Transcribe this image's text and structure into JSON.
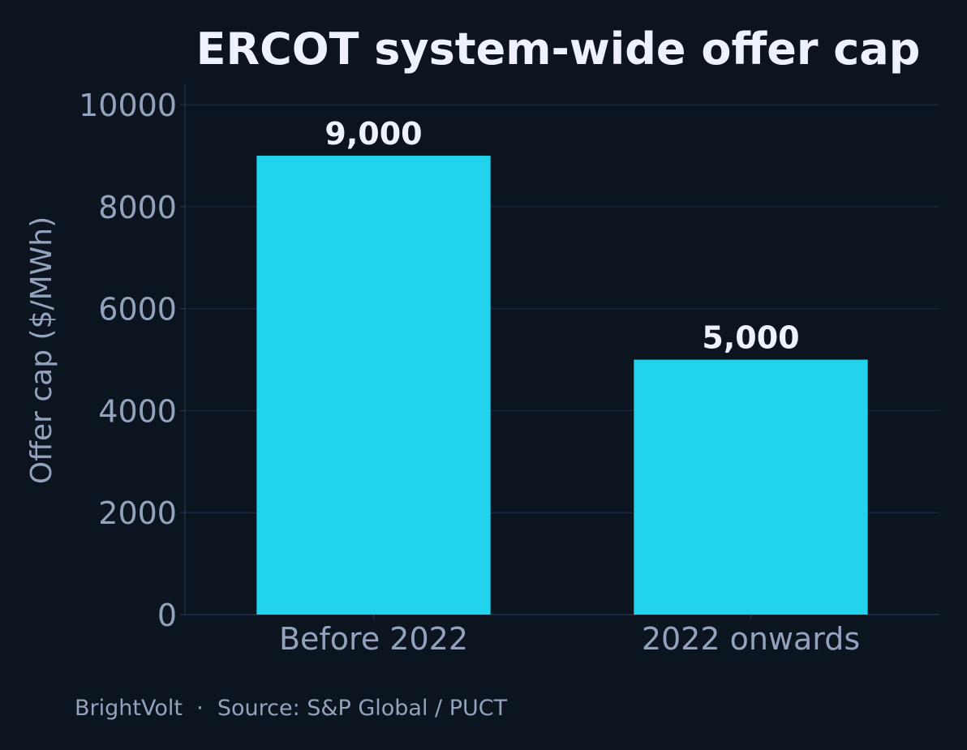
{
  "colors": {
    "background": "#0c1420",
    "bar": "#22d3ee",
    "grid": "#1e2a40",
    "axis": "#2a3550",
    "tick_text": "#94a3bd",
    "title_text": "#eef2fc"
  },
  "chart_data": {
    "type": "bar",
    "title": "ERCOT system-wide offer cap",
    "xlabel": "",
    "ylabel": "Offer cap ($/MWh)",
    "categories": [
      "Before 2022",
      "2022 onwards"
    ],
    "values": [
      9000,
      5000
    ],
    "value_labels": [
      "9,000",
      "5,000"
    ],
    "ylim": [
      0,
      10400
    ],
    "yticks": [
      0,
      2000,
      4000,
      6000,
      8000,
      10000
    ],
    "ytick_labels": [
      "0",
      "2000",
      "4000",
      "6000",
      "8000",
      "10000"
    ],
    "grid": "horizontal",
    "legend": "none"
  },
  "footer": {
    "text": "BrightVolt  ·  Source: S&P Global / PUCT"
  }
}
